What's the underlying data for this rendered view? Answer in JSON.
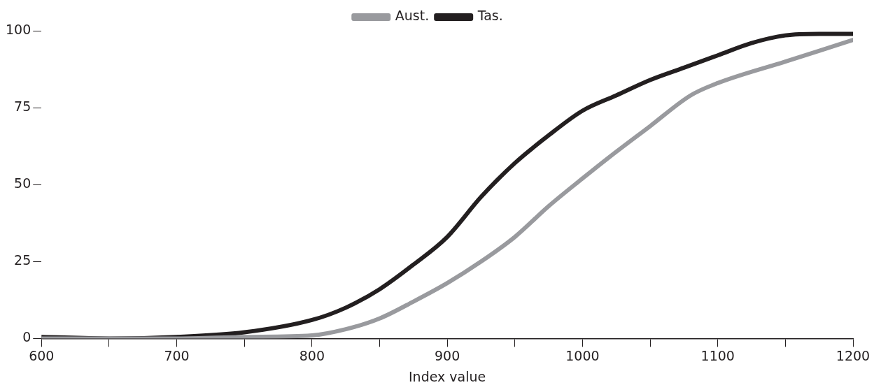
{
  "chart_data": {
    "type": "line",
    "xlabel": "Index value",
    "legend": "top",
    "grid": false,
    "marker": "none",
    "line_style": "solid",
    "xlim": [
      600,
      1200
    ],
    "ylim": [
      0,
      100
    ],
    "xticks": [
      600,
      {
        "value": 650,
        "label": null
      },
      700,
      {
        "value": 750,
        "label": null
      },
      800,
      {
        "value": 850,
        "label": null
      },
      900,
      {
        "value": 950,
        "label": null
      },
      1000,
      {
        "value": 1050,
        "label": null
      },
      1100,
      {
        "value": 1150,
        "label": null
      },
      1200
    ],
    "yticks": [
      0,
      25,
      50,
      75,
      100
    ],
    "series": [
      {
        "name": "Aust.",
        "color": "#999a9e",
        "x": [
          600,
          650,
          700,
          750,
          800,
          825,
          850,
          875,
          900,
          925,
          950,
          975,
          1000,
          1020,
          1050,
          1080,
          1100,
          1150,
          1200
        ],
        "values": [
          0,
          0,
          0,
          0.5,
          1,
          3,
          6.5,
          12,
          18,
          25,
          33,
          43,
          52,
          59,
          69,
          79,
          83,
          90,
          97
        ]
      },
      {
        "name": "Tas.",
        "color": "#231f20",
        "x": [
          600,
          650,
          700,
          750,
          800,
          825,
          850,
          875,
          900,
          925,
          950,
          975,
          1000,
          1025,
          1050,
          1075,
          1100,
          1125,
          1150,
          1175,
          1200
        ],
        "values": [
          0.5,
          0,
          0.5,
          2,
          6,
          10,
          16,
          24,
          33,
          46,
          57,
          66,
          74,
          79,
          84,
          88,
          92,
          96,
          98.5,
          99,
          99
        ]
      }
    ]
  }
}
